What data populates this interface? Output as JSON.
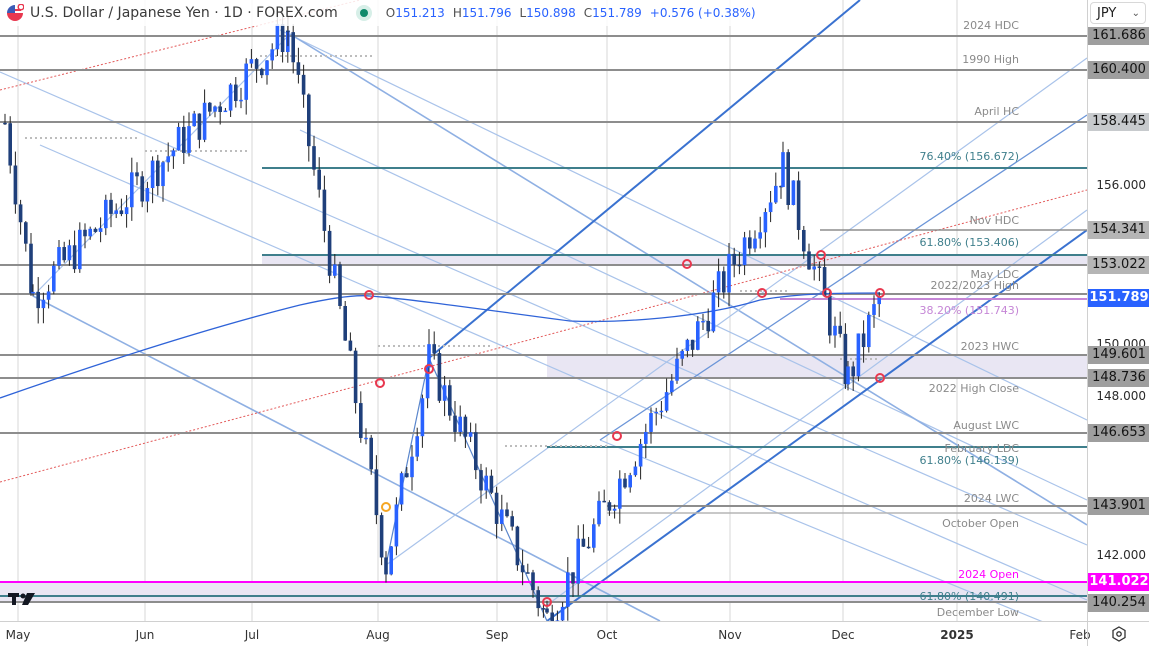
{
  "header": {
    "symbol_title": "U.S. Dollar / Japanese Yen · 1D · FOREX.com",
    "flag_icon": "us-jp-flag-icon",
    "market_status_color": "#0f8a6b",
    "ohlc": {
      "open_label": "O",
      "open": "151.213",
      "high_label": "H",
      "high": "151.796",
      "low_label": "L",
      "low": "150.898",
      "close_label": "C",
      "close": "151.789",
      "change": "+0.576 (+0.38%)"
    }
  },
  "currency_select": {
    "value": "JPY"
  },
  "price_axis": {
    "ticks": [
      "156.000",
      "150.000",
      "148.000",
      "142.000"
    ],
    "labels": [
      {
        "value": "161.686",
        "bg": "#9e9e9e",
        "color": "#141414"
      },
      {
        "value": "160.400",
        "bg": "#9e9e9e",
        "color": "#141414"
      },
      {
        "value": "158.445",
        "bg": "#c7cacd",
        "color": "#141414"
      },
      {
        "value": "154.341",
        "bg": "#b5b5b5",
        "color": "#141414"
      },
      {
        "value": "153.022",
        "bg": "#b5b5b5",
        "color": "#141414"
      },
      {
        "value": "151.789",
        "bg": "#2962ff",
        "color": "#ffffff"
      },
      {
        "value": "149.601",
        "bg": "#9e9e9e",
        "color": "#141414"
      },
      {
        "value": "148.736",
        "bg": "#9e9e9e",
        "color": "#141414"
      },
      {
        "value": "146.653",
        "bg": "#9e9e9e",
        "color": "#141414"
      },
      {
        "value": "143.901",
        "bg": "#9e9e9e",
        "color": "#141414"
      },
      {
        "value": "141.022",
        "bg": "#ff00ff",
        "color": "#ffffff"
      },
      {
        "value": "140.254",
        "bg": "#9e9e9e",
        "color": "#141414"
      }
    ]
  },
  "level_labels": [
    {
      "text": "2024 HDC",
      "color": "#8a8a8a"
    },
    {
      "text": "1990 High",
      "color": "#8a8a8a"
    },
    {
      "text": "April HC",
      "color": "#8a8a8a"
    },
    {
      "text": "76.40% (156.672)",
      "color": "#3f7f8c"
    },
    {
      "text": "Nov HDC",
      "color": "#8a8a8a"
    },
    {
      "text": "61.80% (153.406)",
      "color": "#3f7f8c"
    },
    {
      "text": "May LDC",
      "color": "#8a8a8a"
    },
    {
      "text": "2022/2023 High",
      "color": "#8a8a8a"
    },
    {
      "text": "38.20% (151.743)",
      "color": "#c586d6"
    },
    {
      "text": "2023 HWC",
      "color": "#8a8a8a"
    },
    {
      "text": "2022 High Close",
      "color": "#8a8a8a"
    },
    {
      "text": "August LWC",
      "color": "#8a8a8a"
    },
    {
      "text": "February LDC",
      "color": "#8a8a8a"
    },
    {
      "text": "61.80% (146.139)",
      "color": "#3f7f8c"
    },
    {
      "text": "2024 LWC",
      "color": "#8a8a8a"
    },
    {
      "text": "October Open",
      "color": "#8a8a8a"
    },
    {
      "text": "2024 Open",
      "color": "#ff00ff"
    },
    {
      "text": "61.80% (140.491)",
      "color": "#3f7f8c"
    },
    {
      "text": "December Low",
      "color": "#8a8a8a"
    }
  ],
  "time_axis": {
    "labels": [
      "May",
      "Jun",
      "Jul",
      "Aug",
      "Sep",
      "Oct",
      "Nov",
      "Dec",
      "2025",
      "Feb"
    ]
  },
  "colors": {
    "bull_candle": "#2962ff",
    "bear_candle": "#1f3f7a",
    "moving_average": "#2f63d8",
    "channel": "#3a72d0",
    "channel_light": "#a9c3ea",
    "fib_teal": "#3f7f8c",
    "level_gray": "#8d8d8d",
    "zone_fill": "#e9e6f3",
    "pivot_marker": "#e8384f",
    "pivot_marker_alt": "#f5a623",
    "trendline_dotted": "#e35a5a"
  },
  "chart_data": {
    "type": "candlestick",
    "title": "U.S. Dollar / Japanese Yen · 1D · FOREX.com",
    "xlabel": "",
    "ylabel": "JPY",
    "ylim": [
      139.5,
      162.5
    ],
    "x_ticks": [
      "May",
      "Jun",
      "Jul",
      "Aug",
      "Sep",
      "Oct",
      "Nov",
      "Dec",
      "2025",
      "Feb"
    ],
    "y_ticks": [
      142.0,
      148.0,
      150.0,
      156.0
    ],
    "grid": true,
    "last": {
      "open": 151.213,
      "high": 151.796,
      "low": 150.898,
      "close": 151.789,
      "change": 0.576,
      "change_pct": 0.38
    },
    "horizontal_levels": [
      {
        "label": "2024 HDC",
        "value": 161.686
      },
      {
        "label": "1990 High",
        "value": 160.4
      },
      {
        "label": "April HC",
        "value": 158.445
      },
      {
        "label": "76.40%",
        "value": 156.672
      },
      {
        "label": "Nov HDC",
        "value": 154.341
      },
      {
        "label": "61.80%",
        "value": 153.406
      },
      {
        "label": "May LDC",
        "value": 153.022
      },
      {
        "label": "2022/2023 High",
        "value": 151.95
      },
      {
        "label": "38.20%",
        "value": 151.743
      },
      {
        "label": "2023 HWC",
        "value": 149.601
      },
      {
        "label": "2022 High Close",
        "value": 148.736
      },
      {
        "label": "August LWC",
        "value": 146.653
      },
      {
        "label": "February LDC / 61.80%",
        "value": 146.139
      },
      {
        "label": "2024 LWC",
        "value": 143.901
      },
      {
        "label": "October Open",
        "value": 143.62
      },
      {
        "label": "2024 Open",
        "value": 141.022
      },
      {
        "label": "61.80%",
        "value": 140.491
      },
      {
        "label": "December Low",
        "value": 140.254
      }
    ],
    "zones": [
      {
        "from": 153.022,
        "to": 153.406
      },
      {
        "from": 148.736,
        "to": 149.601
      },
      {
        "from": 140.491,
        "to": 141.022
      }
    ],
    "approx_swing_points": [
      {
        "date": "late Apr",
        "price": 158.4
      },
      {
        "date": "early May",
        "price": 151.9
      },
      {
        "date": "early Jul",
        "price": 161.9
      },
      {
        "date": "early Aug",
        "price": 141.7
      },
      {
        "date": "mid Aug",
        "price": 149.4
      },
      {
        "date": "mid Sep",
        "price": 139.6
      },
      {
        "date": "mid Nov",
        "price": 156.7
      },
      {
        "date": "early Dec",
        "price": 148.7
      },
      {
        "date": "current",
        "price": 151.789
      }
    ]
  }
}
